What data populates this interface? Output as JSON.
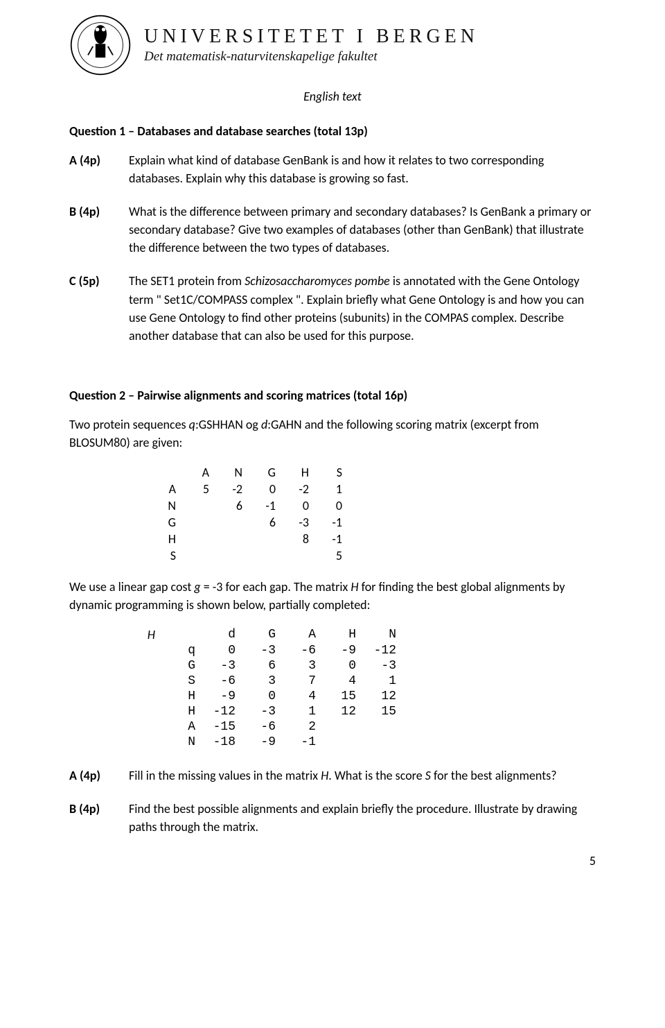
{
  "header": {
    "title": "UNIVERSITETET I BERGEN",
    "subtitle": "Det matematisk-naturvitenskapelige fakultet"
  },
  "english_text": "English text",
  "q1": {
    "title": "Question 1 – Databases and database searches (total 13p)",
    "parts": {
      "a_label": "A (4p)",
      "a_body": "Explain what kind of database GenBank is and how it relates to two corresponding databases. Explain why this database is growing so fast.",
      "b_label": "B (4p)",
      "b_body": "What is the difference between primary and secondary databases? Is GenBank a primary or secondary database? Give two examples of databases (other than GenBank) that illustrate the difference between the two types of databases.",
      "c_label": "C (5p)",
      "c_body_pre": "The SET1 protein from ",
      "c_body_it": "Schizosaccharomyces pombe",
      "c_body_post": " is annotated with the Gene Ontology term \" Set1C/COMPASS complex \". Explain briefly what Gene Ontology is and how you can use Gene Ontology to find other proteins (subunits) in the COMPAS complex. Describe another database that can also be used for this purpose."
    }
  },
  "q2": {
    "title": "Question 2 – Pairwise alignments and scoring matrices (total 16p)",
    "intro_pre": "Two protein sequences ",
    "intro_q": "q",
    "intro_mid1": ":GSHHAN og ",
    "intro_d": "d",
    "intro_mid2": ":GAHN and the following scoring matrix (excerpt from BLOSUM80) are given:",
    "matrix1": {
      "header": [
        "",
        "A",
        "N",
        "G",
        "H",
        "S"
      ],
      "rows": [
        [
          "A",
          "5",
          "-2",
          "0",
          "-2",
          "1"
        ],
        [
          "N",
          "",
          "6",
          "-1",
          "0",
          "0"
        ],
        [
          "G",
          "",
          "",
          "6",
          "-3",
          "-1"
        ],
        [
          "H",
          "",
          "",
          "",
          "8",
          "-1"
        ],
        [
          "S",
          "",
          "",
          "",
          "",
          "5"
        ]
      ]
    },
    "gap_pre": "We use a linear gap cost ",
    "gap_g": "g",
    "gap_mid": " = -3 for each gap. The matrix ",
    "gap_H": "H",
    "gap_post": " for finding the best global alignments by dynamic programming is shown below, partially completed:",
    "matrix2": {
      "header_left": "H",
      "header": [
        "",
        "d",
        "G",
        "A",
        "H",
        "N"
      ],
      "rows": [
        [
          "",
          "q",
          "0",
          "-3",
          "-6",
          "-9",
          "-12"
        ],
        [
          "",
          "G",
          "-3",
          "6",
          "3",
          "0",
          "-3"
        ],
        [
          "",
          "S",
          "-6",
          "3",
          "7",
          "4",
          "1"
        ],
        [
          "",
          "H",
          "-9",
          "0",
          "4",
          "15",
          "12"
        ],
        [
          "",
          "H",
          "-12",
          "-3",
          "1",
          "12",
          "15"
        ],
        [
          "",
          "A",
          "-15",
          "-6",
          "2",
          "",
          ""
        ],
        [
          "",
          "N",
          "-18",
          "-9",
          "-1",
          "",
          ""
        ]
      ]
    },
    "a_label": "A (4p)",
    "a_body_pre": "Fill in the missing values in the matrix ",
    "a_body_H": "H",
    "a_body_mid": ". What is the score ",
    "a_body_S": "S",
    "a_body_post": " for the best alignments?",
    "b_label": "B (4p)",
    "b_body": "Find the best possible alignments and explain briefly the procedure. Illustrate by drawing paths through the matrix."
  },
  "page": "5"
}
